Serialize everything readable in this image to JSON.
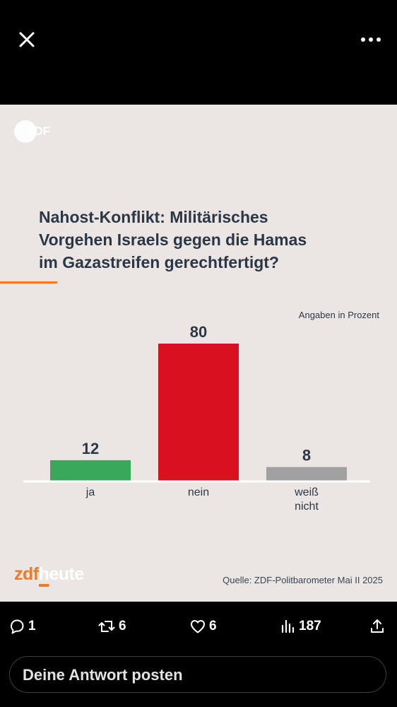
{
  "topbar": {
    "close_icon": "close-icon",
    "more_icon": "more-horizontal-icon"
  },
  "infographic": {
    "logo_text": "ZDF",
    "title_lines": [
      "Nahost-Konflikt: Militärisches",
      "Vorgehen Israels gegen die Hamas",
      "im Gazastreifen gerechtfertigt?"
    ],
    "unit_note": "Angaben in Prozent",
    "brand_prefix": "zdf",
    "brand_suffix": "heute",
    "source": "Quelle: ZDF-Politbarometer Mai II 2025",
    "accent_color": "#f07a28"
  },
  "chart_data": {
    "type": "bar",
    "title": "Nahost-Konflikt: Militärisches Vorgehen Israels gegen die Hamas im Gazastreifen gerechtfertigt?",
    "categories": [
      [
        "ja"
      ],
      [
        "nein"
      ],
      [
        "weiß",
        "nicht"
      ]
    ],
    "values": [
      12,
      80,
      8
    ],
    "colors": [
      "#3aa85a",
      "#d8101f",
      "#a0a0a0"
    ],
    "data_labels": [
      "12",
      "80",
      "8"
    ],
    "unit_note": "Angaben in Prozent",
    "ylim": [
      0,
      80
    ],
    "grid": false,
    "legend": "none"
  },
  "actions": {
    "reply": {
      "icon": "reply-icon",
      "count": "1"
    },
    "repost": {
      "icon": "repost-icon",
      "count": "6"
    },
    "like": {
      "icon": "heart-icon",
      "count": "6"
    },
    "views": {
      "icon": "views-icon",
      "count": "187"
    },
    "share": {
      "icon": "share-icon"
    }
  },
  "reply_box": {
    "placeholder": "Deine Antwort posten"
  }
}
